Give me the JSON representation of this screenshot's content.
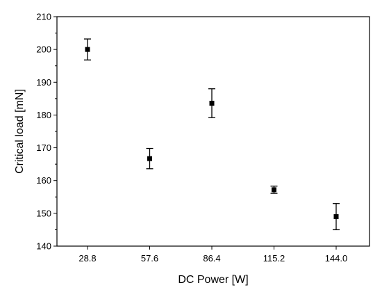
{
  "chart_data": {
    "type": "scatter",
    "title": "",
    "xlabel": "DC Power [W]",
    "ylabel": "Critical load [mN]",
    "categories": [
      "28.8",
      "57.6",
      "86.4",
      "115.2",
      "144.0"
    ],
    "series": [
      {
        "values": [
          200.0,
          166.7,
          183.6,
          157.2,
          149.0
        ],
        "error": [
          3.2,
          3.1,
          4.4,
          1.1,
          4.0
        ],
        "marker": "square",
        "color": "#000000"
      }
    ],
    "yticks": [
      140,
      150,
      160,
      170,
      180,
      190,
      200,
      210
    ],
    "ylim": [
      140,
      210
    ],
    "grid": false,
    "legend": "none"
  }
}
